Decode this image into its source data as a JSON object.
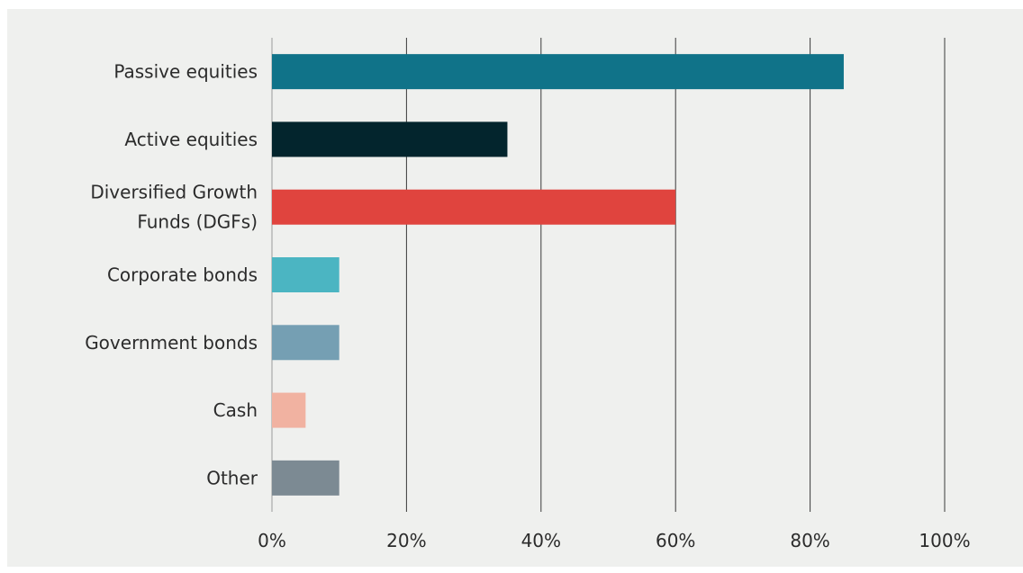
{
  "chart_data": {
    "type": "bar",
    "orientation": "horizontal",
    "title": "",
    "xlabel": "",
    "ylabel": "",
    "categories": [
      [
        "Passive equities"
      ],
      [
        "Active equities"
      ],
      [
        "Diversified Growth",
        "Funds (DGFs)"
      ],
      [
        "Corporate bonds"
      ],
      [
        "Government bonds"
      ],
      [
        "Cash"
      ],
      [
        "Other"
      ]
    ],
    "values": [
      85,
      35,
      60,
      10,
      10,
      5,
      10
    ],
    "colors": [
      "#107389",
      "#03252d",
      "#e0443e",
      "#4bb5c2",
      "#759fb3",
      "#f1b2a1",
      "#7c8a93"
    ],
    "xlim": [
      0,
      100
    ],
    "xticks": [
      0,
      20,
      40,
      60,
      80,
      100
    ],
    "xtick_labels": [
      "0%",
      "20%",
      "40%",
      "60%",
      "80%",
      "100%"
    ],
    "grid": "vertical",
    "legend": "none"
  }
}
